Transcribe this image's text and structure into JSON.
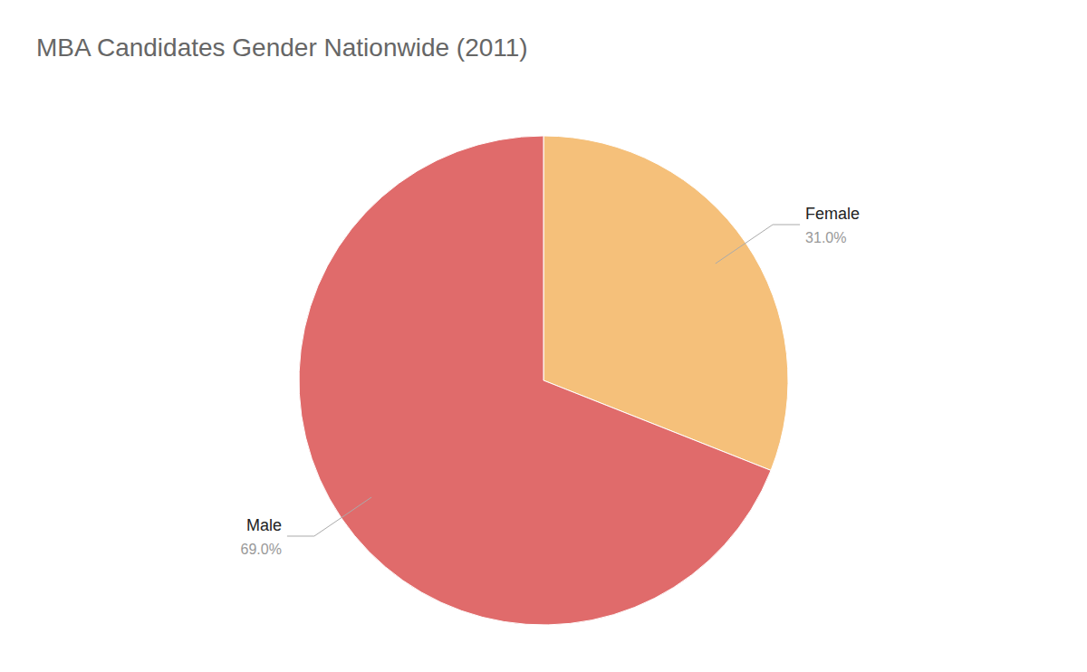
{
  "chart_data": {
    "type": "pie",
    "title": "MBA Candidates Gender Nationwide (2011)",
    "categories": [
      "Female",
      "Male"
    ],
    "values": [
      31.0,
      69.0
    ],
    "value_labels": [
      "31.0%",
      "69.0%"
    ],
    "colors": [
      "#F5C07A",
      "#E06B6B"
    ],
    "data_labels": true
  }
}
